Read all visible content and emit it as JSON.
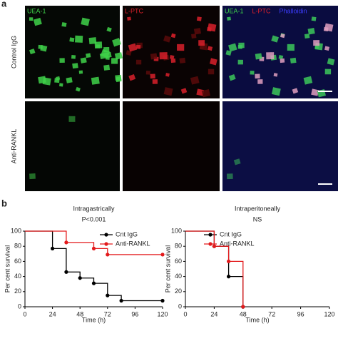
{
  "figure": {
    "panel_a_label": "a",
    "panel_b_label": "b",
    "channel_labels": [
      "UEA-1",
      "L-PTC"
    ],
    "merge_labels": [
      "UEA-1",
      "L-PTC",
      "Phalloidin"
    ],
    "row_labels": [
      "Control IgG",
      "Anti-RANKL"
    ]
  },
  "chart_data": [
    {
      "type": "step",
      "title": "Intragastrically",
      "subtitle": "P<0.001",
      "xlabel": "Time (h)",
      "ylabel": "Per cent survival",
      "xlim": [
        0,
        120
      ],
      "xticks": [
        0,
        24,
        48,
        72,
        96,
        120
      ],
      "ylim": [
        0,
        100
      ],
      "yticks": [
        0,
        20,
        40,
        60,
        80,
        100
      ],
      "legend": "upper right",
      "series": [
        {
          "name": "Cnt IgG",
          "color": "#000000",
          "x": [
            0,
            24,
            36,
            48,
            60,
            72,
            84,
            120
          ],
          "values": [
            100,
            77,
            46,
            38,
            31,
            15,
            8,
            8
          ]
        },
        {
          "name": "Anti-RANKL",
          "color": "#e31a1c",
          "x": [
            0,
            36,
            60,
            72,
            120
          ],
          "values": [
            100,
            85,
            77,
            69,
            69
          ]
        }
      ]
    },
    {
      "type": "step",
      "title": "Intraperitoneally",
      "subtitle": "NS",
      "xlabel": "Time (h)",
      "ylabel": "Per cent survival",
      "xlim": [
        0,
        120
      ],
      "xticks": [
        0,
        24,
        48,
        72,
        96,
        120
      ],
      "ylim": [
        0,
        100
      ],
      "yticks": [
        0,
        20,
        40,
        60,
        80,
        100
      ],
      "legend": "upper left",
      "series": [
        {
          "name": "Cnt IgG",
          "color": "#000000",
          "x": [
            0,
            24,
            36,
            48
          ],
          "values": [
            100,
            80,
            40,
            0
          ]
        },
        {
          "name": "Anti-RANKL",
          "color": "#e31a1c",
          "x": [
            0,
            24,
            36,
            48
          ],
          "values": [
            100,
            80,
            60,
            0
          ]
        }
      ]
    }
  ]
}
